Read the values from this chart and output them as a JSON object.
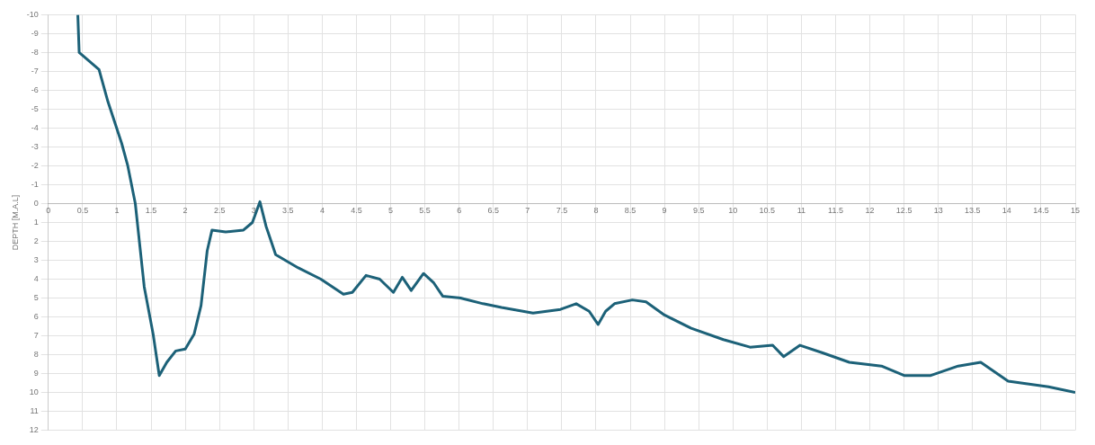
{
  "chart_data": {
    "type": "line",
    "ylabel": "DEPTH [M.A.L]",
    "grid": true,
    "marker": "none",
    "line_style": "solid",
    "xlim": [
      0,
      15
    ],
    "xticks": [
      0,
      0.5,
      1,
      1.5,
      2,
      2.5,
      3,
      3.5,
      4,
      4.5,
      5,
      5.5,
      6,
      6.5,
      7,
      7.5,
      8,
      8.5,
      9,
      9.5,
      10,
      10.5,
      11,
      11.5,
      12,
      12.5,
      13,
      13.5,
      14,
      14.5,
      15
    ],
    "ylim": [
      12,
      -10
    ],
    "yticks": [
      -10,
      -9,
      -8,
      -7,
      -6,
      -5,
      -4,
      -3,
      -2,
      -1,
      0,
      1,
      2,
      3,
      4,
      5,
      6,
      7,
      8,
      9,
      10,
      11,
      12
    ],
    "series": [
      {
        "color": "#1c6178",
        "x": [
          0.43,
          0.45,
          0.74,
          0.87,
          1.07,
          1.16,
          1.27,
          1.4,
          1.53,
          1.62,
          1.73,
          1.86,
          2.0,
          2.13,
          2.23,
          2.32,
          2.39,
          2.59,
          2.85,
          2.98,
          3.09,
          3.18,
          3.32,
          3.65,
          3.98,
          4.31,
          4.44,
          4.64,
          4.84,
          5.04,
          5.17,
          5.3,
          5.48,
          5.63,
          5.76,
          6.02,
          6.35,
          6.62,
          7.08,
          7.48,
          7.71,
          7.9,
          8.03,
          8.14,
          8.27,
          8.53,
          8.73,
          9.0,
          9.39,
          9.86,
          10.25,
          10.58,
          10.74,
          10.98,
          11.31,
          11.7,
          12.17,
          12.5,
          12.89,
          13.29,
          13.62,
          14.02,
          14.61,
          15.0
        ],
        "values": [
          -10,
          -8,
          -7.1,
          -5.4,
          -3.2,
          -2,
          0,
          4.4,
          6.9,
          9.1,
          8.4,
          7.8,
          7.7,
          6.9,
          5.4,
          2.5,
          1.4,
          1.5,
          1.4,
          1.0,
          -0.1,
          1.2,
          2.7,
          3.4,
          4.0,
          4.8,
          4.7,
          3.8,
          4.0,
          4.7,
          3.9,
          4.6,
          3.7,
          4.2,
          4.9,
          5.0,
          5.3,
          5.5,
          5.8,
          5.6,
          5.3,
          5.7,
          6.4,
          5.7,
          5.3,
          5.1,
          5.2,
          5.9,
          6.6,
          7.2,
          7.6,
          7.5,
          8.1,
          7.5,
          7.9,
          8.4,
          8.6,
          9.1,
          9.1,
          8.6,
          8.4,
          9.4,
          9.7,
          10.0
        ]
      }
    ]
  }
}
